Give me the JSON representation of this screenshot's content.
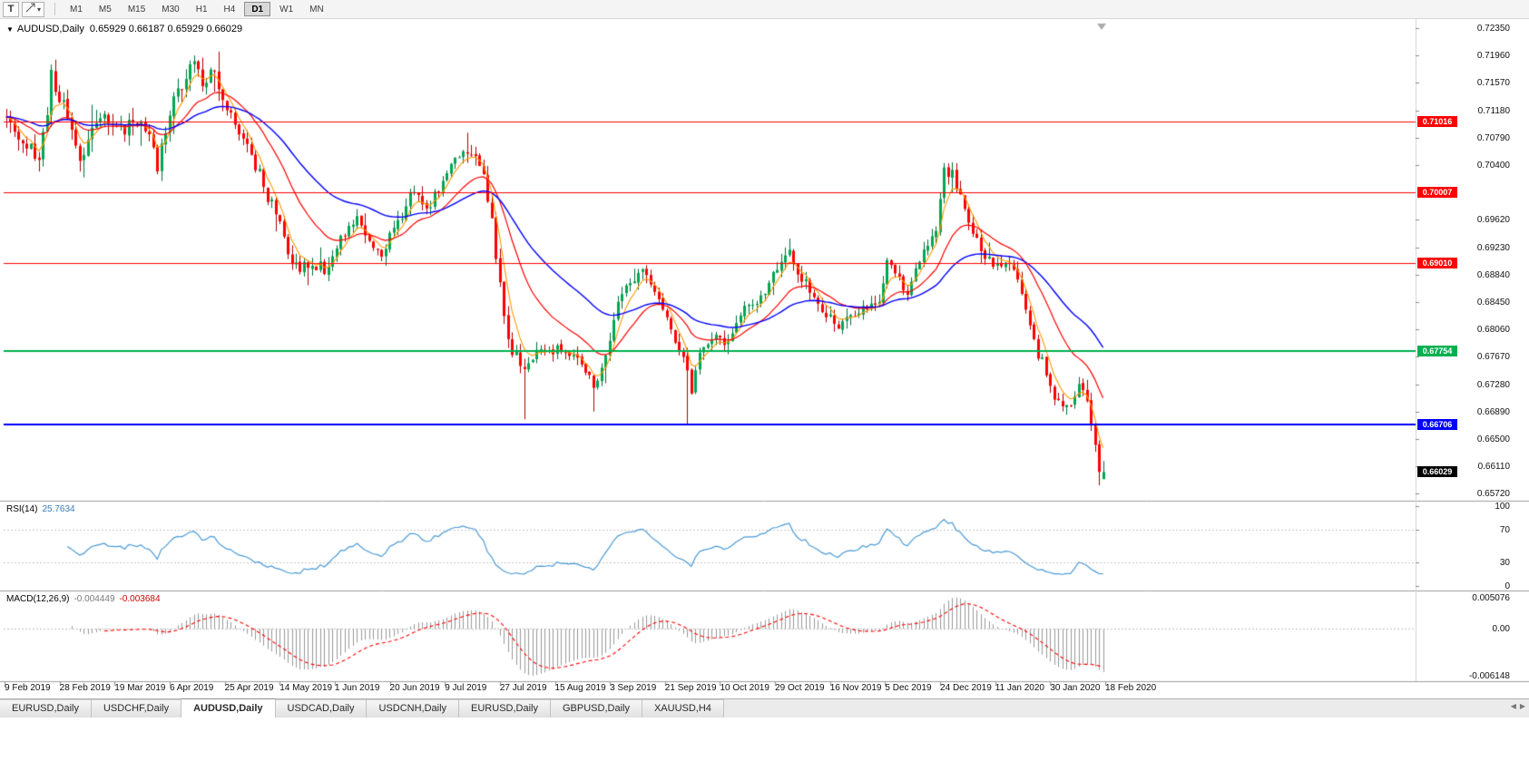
{
  "toolbar": {
    "text_tool_label": "T",
    "dropdown_glyph": "▾",
    "timeframes": [
      "M1",
      "M5",
      "M15",
      "M30",
      "H1",
      "H4",
      "D1",
      "W1",
      "MN"
    ],
    "active_timeframe": "D1"
  },
  "chart": {
    "dropdown_glyph": "▼",
    "title": "AUDUSD,Daily",
    "ohlc_text": "0.65929 0.66187 0.65929 0.66029",
    "open": "0.65929",
    "high": "0.66187",
    "low": "0.65929",
    "close": "0.66029",
    "price_ticks": [
      {
        "v": 0.7235,
        "label": "0.72350"
      },
      {
        "v": 0.7196,
        "label": "0.71960"
      },
      {
        "v": 0.7157,
        "label": "0.71570"
      },
      {
        "v": 0.7118,
        "label": "0.71180"
      },
      {
        "v": 0.7079,
        "label": "0.70790"
      },
      {
        "v": 0.704,
        "label": "0.70400"
      },
      {
        "v": 0.6962,
        "label": "0.69620"
      },
      {
        "v": 0.6923,
        "label": "0.69230"
      },
      {
        "v": 0.6884,
        "label": "0.68840"
      },
      {
        "v": 0.6845,
        "label": "0.68450"
      },
      {
        "v": 0.6806,
        "label": "0.68060"
      },
      {
        "v": 0.6767,
        "label": "0.67670"
      },
      {
        "v": 0.6728,
        "label": "0.67280"
      },
      {
        "v": 0.6689,
        "label": "0.66890"
      },
      {
        "v": 0.665,
        "label": "0.66500"
      },
      {
        "v": 0.6611,
        "label": "0.66110"
      },
      {
        "v": 0.6572,
        "label": "0.65720"
      }
    ],
    "hlines": [
      {
        "value": 0.71016,
        "label": "0.71016",
        "color": "#FF0000",
        "width": 1
      },
      {
        "value": 0.70007,
        "label": "0.70007",
        "color": "#FF0000",
        "width": 1
      },
      {
        "value": 0.6901,
        "label": "0.69010",
        "color": "#FF0000",
        "width": 1
      },
      {
        "value": 0.67754,
        "label": "0.67754",
        "color": "#00B050",
        "width": 2
      },
      {
        "value": 0.66706,
        "label": "0.66706",
        "color": "#0000FF",
        "width": 2
      }
    ],
    "current_price": {
      "value": 0.66029,
      "label": "0.66029",
      "badge_color": "#000000"
    },
    "dates": [
      "9 Feb 2019",
      "28 Feb 2019",
      "19 Mar 2019",
      "6 Apr 2019",
      "25 Apr 2019",
      "14 May 2019",
      "1 Jun 2019",
      "20 Jun 2019",
      "9 Jul 2019",
      "27 Jul 2019",
      "15 Aug 2019",
      "3 Sep 2019",
      "21 Sep 2019",
      "10 Oct 2019",
      "29 Oct 2019",
      "16 Nov 2019",
      "5 Dec 2019",
      "24 Dec 2019",
      "11 Jan 2020",
      "30 Jan 2020",
      "18 Feb 2020"
    ],
    "colors": {
      "bull": "#00A651",
      "bull_border": "#00703C",
      "bear": "#FF0000",
      "bear_border": "#AF0000",
      "ma_fast": "#FF9900",
      "ma_mid": "#FF0000",
      "ma_slow": "#0000FF"
    }
  },
  "rsi": {
    "name": "RSI(14)",
    "value": "25.7634",
    "color": "#4C9BD6",
    "levels": [
      70,
      30
    ],
    "ticks": [
      {
        "v": 100,
        "label": "100"
      },
      {
        "v": 70,
        "label": "70"
      },
      {
        "v": 30,
        "label": "30"
      },
      {
        "v": 0,
        "label": "0"
      }
    ]
  },
  "macd": {
    "name": "MACD(12,26,9)",
    "main_value": "-0.004449",
    "signal_value": "-0.003684",
    "tick_top": "0.005076",
    "tick_zero": "0.00",
    "tick_bottom": "-0.006148",
    "histogram_color": "#999999",
    "signal_color": "#FF0000"
  },
  "tabs": [
    {
      "label": "EURUSD,Daily",
      "active": false
    },
    {
      "label": "USDCHF,Daily",
      "active": false
    },
    {
      "label": "AUDUSD,Daily",
      "active": true
    },
    {
      "label": "USDCAD,Daily",
      "active": false
    },
    {
      "label": "USDCNH,Daily",
      "active": false
    },
    {
      "label": "EURUSD,Daily",
      "active": false
    },
    {
      "label": "GBPUSD,Daily",
      "active": false
    },
    {
      "label": "XAUUSD,H4",
      "active": false
    }
  ],
  "tabbar": {
    "scroll_left": "◀",
    "scroll_right": "▶"
  },
  "chart_data": {
    "type": "candlestick",
    "symbol": "AUDUSD",
    "timeframe": "Daily",
    "visible_range": {
      "first_date": "9 Feb 2019",
      "last_date": "18 Feb 2020",
      "price_min": 0.6572,
      "price_max": 0.7235
    },
    "last_candle": {
      "open": 0.65929,
      "high": 0.66187,
      "low": 0.65929,
      "close": 0.66029
    },
    "candle_count": 270,
    "seed": 11,
    "waypoints": [
      [
        0,
        0.7108
      ],
      [
        4,
        0.7072
      ],
      [
        8,
        0.7046
      ],
      [
        11,
        0.7162
      ],
      [
        14,
        0.7118
      ],
      [
        18,
        0.7052
      ],
      [
        23,
        0.7112
      ],
      [
        28,
        0.7092
      ],
      [
        33,
        0.7106
      ],
      [
        37,
        0.7046
      ],
      [
        42,
        0.7152
      ],
      [
        46,
        0.7186
      ],
      [
        49,
        0.7158
      ],
      [
        51,
        0.7174
      ],
      [
        56,
        0.7096
      ],
      [
        59,
        0.707
      ],
      [
        62,
        0.7026
      ],
      [
        66,
        0.6968
      ],
      [
        69,
        0.6916
      ],
      [
        72,
        0.689
      ],
      [
        76,
        0.6902
      ],
      [
        79,
        0.6888
      ],
      [
        83,
        0.695
      ],
      [
        86,
        0.6962
      ],
      [
        89,
        0.6928
      ],
      [
        92,
        0.6916
      ],
      [
        97,
        0.697
      ],
      [
        100,
        0.7001
      ],
      [
        103,
        0.6973
      ],
      [
        107,
        0.7014
      ],
      [
        110,
        0.7044
      ],
      [
        113,
        0.706
      ],
      [
        117,
        0.7036
      ],
      [
        120,
        0.6916
      ],
      [
        123,
        0.6792
      ],
      [
        127,
        0.6742
      ],
      [
        130,
        0.6772
      ],
      [
        135,
        0.6778
      ],
      [
        139,
        0.677
      ],
      [
        144,
        0.6731
      ],
      [
        147,
        0.676
      ],
      [
        150,
        0.6847
      ],
      [
        154,
        0.6885
      ],
      [
        156,
        0.6892
      ],
      [
        159,
        0.6862
      ],
      [
        163,
        0.6806
      ],
      [
        166,
        0.676
      ],
      [
        168,
        0.6723
      ],
      [
        170,
        0.6771
      ],
      [
        174,
        0.6797
      ],
      [
        177,
        0.6786
      ],
      [
        180,
        0.6834
      ],
      [
        184,
        0.6848
      ],
      [
        187,
        0.6867
      ],
      [
        190,
        0.6904
      ],
      [
        192,
        0.6914
      ],
      [
        194,
        0.6888
      ],
      [
        197,
        0.6862
      ],
      [
        200,
        0.6831
      ],
      [
        204,
        0.6811
      ],
      [
        207,
        0.6823
      ],
      [
        210,
        0.683
      ],
      [
        214,
        0.685
      ],
      [
        216,
        0.6899
      ],
      [
        219,
        0.6875
      ],
      [
        221,
        0.6862
      ],
      [
        225,
        0.6919
      ],
      [
        228,
        0.6951
      ],
      [
        230,
        0.7034
      ],
      [
        232,
        0.7027
      ],
      [
        234,
        0.6997
      ],
      [
        237,
        0.6941
      ],
      [
        240,
        0.6908
      ],
      [
        243,
        0.69
      ],
      [
        247,
        0.6893
      ],
      [
        250,
        0.6836
      ],
      [
        253,
        0.6772
      ],
      [
        257,
        0.6707
      ],
      [
        260,
        0.669
      ],
      [
        263,
        0.6722
      ],
      [
        265,
        0.6706
      ],
      [
        267,
        0.6644
      ],
      [
        268,
        0.6606
      ],
      [
        269,
        0.66029
      ]
    ],
    "spikes": [
      {
        "i": 46,
        "high": 0.7196
      },
      {
        "i": 113,
        "high": 0.7086
      },
      {
        "i": 127,
        "low": 0.6678
      },
      {
        "i": 144,
        "low": 0.6689
      },
      {
        "i": 167,
        "low": 0.6671
      },
      {
        "i": 230,
        "high": 0.7042
      },
      {
        "i": 268,
        "low": 0.6584
      }
    ],
    "overlays": [
      {
        "name": "ma-fast",
        "type": "ema",
        "period": 5,
        "color": "#FF9900"
      },
      {
        "name": "ma-mid",
        "type": "ema",
        "period": 18,
        "color": "#FF0000"
      },
      {
        "name": "ma-slow",
        "type": "ema",
        "period": 42,
        "color": "#0000FF"
      }
    ],
    "indicators": [
      {
        "name": "RSI",
        "params": "14",
        "current": 25.7634,
        "range": [
          0,
          100
        ],
        "levels": [
          70,
          30
        ]
      },
      {
        "name": "MACD",
        "params": "12,26,9",
        "main": -0.004449,
        "signal": -0.003684,
        "axis_range": [
          -0.006148,
          0.005076
        ]
      }
    ]
  }
}
